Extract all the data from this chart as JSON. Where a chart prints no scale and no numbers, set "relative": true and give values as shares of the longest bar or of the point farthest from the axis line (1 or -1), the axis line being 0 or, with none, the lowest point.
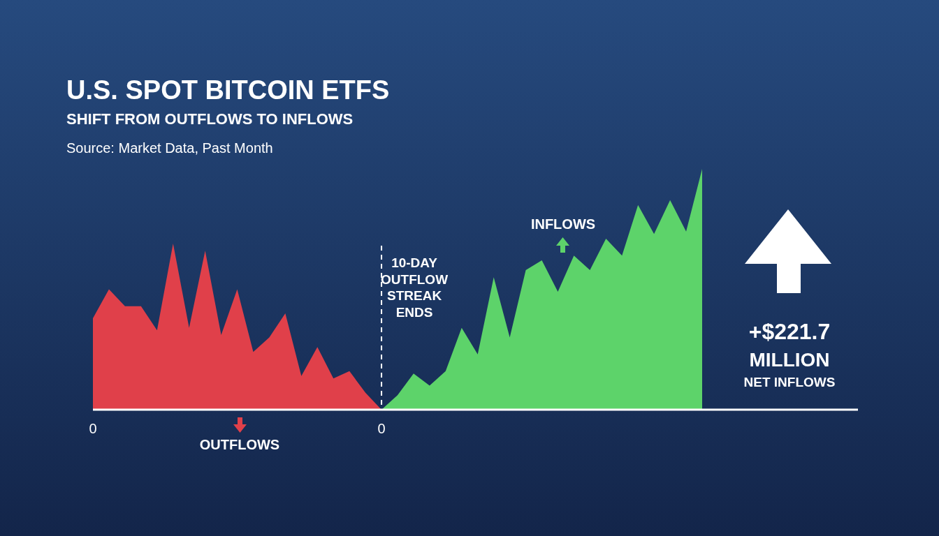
{
  "chart_data": {
    "type": "area",
    "title": "U.S. SPOT BITCOIN ETFS",
    "subtitle": "SHIFT FROM OUTFLOWS TO INFLOWS",
    "relative": true,
    "categories": [
      "0",
      null,
      null,
      null,
      null,
      null,
      null,
      null,
      null,
      null,
      null,
      null,
      null,
      null,
      null,
      null,
      null,
      null,
      "0",
      null,
      null,
      null,
      null,
      null,
      null,
      null,
      null,
      null,
      null,
      null,
      null,
      null,
      null,
      null,
      null,
      null,
      null,
      null,
      null
    ],
    "series": [
      {
        "color": "#e0404a",
        "values": [
          0.38,
          0.5,
          0.43,
          0.43,
          0.33,
          0.69,
          0.34,
          0.66,
          0.31,
          0.5,
          0.24,
          0.3,
          0.4,
          0.14,
          0.26,
          0.13,
          0.16,
          0.07,
          0,
          null,
          null,
          null,
          null,
          null,
          null,
          null,
          null,
          null,
          null,
          null,
          null,
          null,
          null,
          null,
          null,
          null,
          null,
          null,
          null
        ]
      },
      {
        "color": "#5dd36a",
        "values": [
          null,
          null,
          null,
          null,
          null,
          null,
          null,
          null,
          null,
          null,
          null,
          null,
          null,
          null,
          null,
          null,
          null,
          null,
          0,
          0.06,
          0.15,
          0.1,
          0.16,
          0.34,
          0.23,
          0.55,
          0.3,
          0.58,
          0.62,
          0.49,
          0.64,
          0.58,
          0.71,
          0.64,
          0.85,
          0.73,
          0.87,
          0.74,
          1
        ]
      }
    ],
    "annotations": [
      "Source: Market Data, Past Month",
      "OUTFLOWS",
      "INFLOWS",
      "+$221.7 MILLION",
      "NET INFLOWS",
      "10-DAY OUTFLOW STREAK ENDS"
    ]
  }
}
